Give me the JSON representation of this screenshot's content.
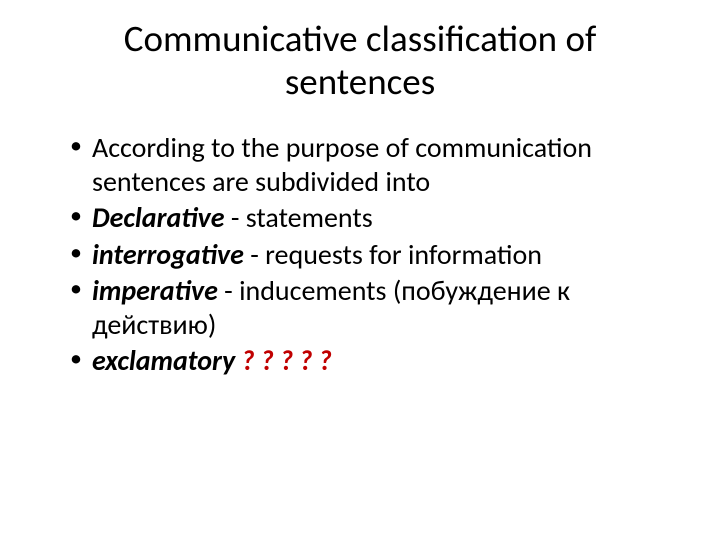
{
  "slide": {
    "title": "Communicative classification of sentences",
    "bullets": [
      {
        "parts": [
          {
            "text": "According to the purpose of communication sentences are subdivided into",
            "bold": false,
            "italic": false,
            "color": "#000000"
          }
        ]
      },
      {
        "parts": [
          {
            "text": "Declarative ",
            "bold": true,
            "italic": true,
            "color": "#000000"
          },
          {
            "text": " - statements",
            "bold": false,
            "italic": false,
            "color": "#000000"
          }
        ]
      },
      {
        "parts": [
          {
            "text": "interrogative ",
            "bold": true,
            "italic": true,
            "color": "#000000"
          },
          {
            "text": "- requests for information",
            "bold": false,
            "italic": false,
            "color": "#000000"
          }
        ]
      },
      {
        "parts": [
          {
            "text": "imperative ",
            "bold": true,
            "italic": true,
            "color": "#000000"
          },
          {
            "text": "- inducements (побуждение к действию)",
            "bold": false,
            "italic": false,
            "color": "#000000"
          }
        ]
      },
      {
        "parts": [
          {
            "text": "exclamatory ",
            "bold": true,
            "italic": true,
            "color": "#000000"
          },
          {
            "text": " ",
            "bold": false,
            "italic": false,
            "color": "#000000"
          },
          {
            "text": "? ? ? ? ?",
            "bold": true,
            "italic": true,
            "color": "#c00000"
          }
        ]
      }
    ]
  },
  "style": {
    "background_color": "#ffffff",
    "text_color": "#000000",
    "accent_color": "#c00000",
    "title_fontsize": 37,
    "body_fontsize": 28,
    "font_family": "Calibri"
  }
}
